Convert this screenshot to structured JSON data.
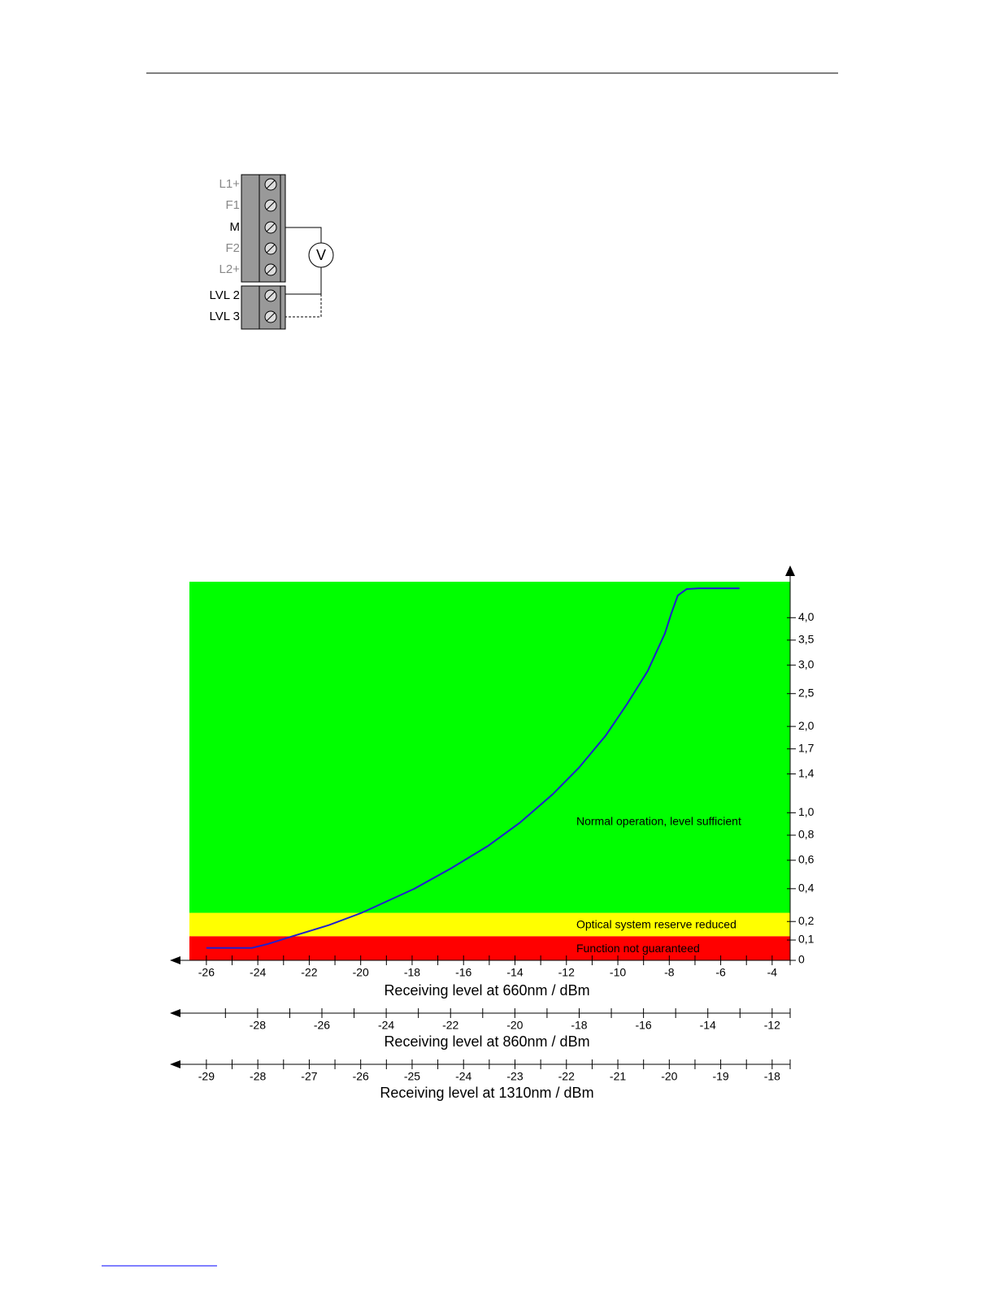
{
  "diagram": {
    "terminals": [
      "L1+",
      "F1",
      "M",
      "F2",
      "L2+",
      "LVL 2",
      "LVL 3"
    ],
    "meter": "V"
  },
  "chart_data": {
    "type": "line",
    "x": [
      -26,
      -24.23,
      -23.6,
      -22.65,
      -21.23,
      -19.96,
      -17.91,
      -16.49,
      -15.06,
      -13.8,
      -12.54,
      -11.52,
      -10.48,
      -9.63,
      -8.84,
      -8.17,
      -7.92,
      -7.67,
      -7.32,
      -6.85,
      -5.27
    ],
    "values": [
      0.06,
      0.06,
      0.08,
      0.12,
      0.18,
      0.25,
      0.4,
      0.54,
      0.71,
      0.91,
      1.18,
      1.47,
      1.87,
      2.34,
      2.89,
      3.64,
      4.1,
      4.55,
      4.72,
      4.74,
      4.74
    ],
    "color": "#1f1fd0",
    "xlabel": "Receiving level at 660nm / dBm",
    "xlim": [
      -26.66,
      -3.3
    ],
    "xticks": [
      -26,
      -24,
      -22,
      -20,
      -18,
      -16,
      -14,
      -12,
      -10,
      -8,
      -6,
      -4
    ],
    "xminorticks": [
      -25,
      -23,
      -21,
      -19,
      -17,
      -15,
      -13,
      -11,
      -9,
      -7,
      -5
    ],
    "yscale": "log1p",
    "ylim": [
      0,
      4.92
    ],
    "yticks": [
      0,
      {
        "value": 0.1,
        "label": "0,1"
      },
      {
        "value": 0.2,
        "label": "0,2"
      },
      {
        "value": 0.4,
        "label": "0,4"
      },
      {
        "value": 0.6,
        "label": "0,6"
      },
      {
        "value": 0.8,
        "label": "0,8"
      },
      {
        "value": 1.0,
        "label": "1,0"
      },
      {
        "value": 1.4,
        "label": "1,4"
      },
      {
        "value": 1.7,
        "label": "1,7"
      },
      {
        "value": 2.0,
        "label": "2,0"
      },
      {
        "value": 2.5,
        "label": "2,5"
      },
      {
        "value": 3.0,
        "label": "3,0"
      },
      {
        "value": 3.5,
        "label": "3,5"
      },
      {
        "value": 4.0,
        "label": "4,0"
      }
    ],
    "zones": [
      {
        "label": "Function not guaranteed",
        "from": 0,
        "to": 0.12,
        "color": "#ff0000"
      },
      {
        "label": "Optical system reserve reduced",
        "from": 0.12,
        "to": 0.25,
        "color": "#ffff00"
      },
      {
        "label": "Normal operation, level sufficient",
        "from": 0.25,
        "to": 4.92,
        "color": "#00ff00"
      }
    ],
    "extra_axes": [
      {
        "label": "Receiving level at 860nm / dBm",
        "xlim": [
          -30.12,
          -11.44
        ],
        "xticks": [
          -28,
          -26,
          -24,
          -22,
          -20,
          -18,
          -16,
          -14,
          -12
        ],
        "xminorticks": [
          -29,
          -27,
          -25,
          -23,
          -21,
          -19,
          -17,
          -15,
          -13
        ]
      },
      {
        "label": "Receiving level at 1310nm / dBm",
        "xlim": [
          -29.33,
          -17.65
        ],
        "xticks": [
          -29,
          -28,
          -27,
          -26,
          -25,
          -24,
          -23,
          -22,
          -21,
          -20,
          -19,
          -18
        ],
        "xminorticks": [
          -28.5,
          -27.5,
          -26.5,
          -25.5,
          -24.5,
          -23.5,
          -22.5,
          -21.5,
          -20.5,
          -19.5,
          -18.5
        ]
      }
    ]
  }
}
